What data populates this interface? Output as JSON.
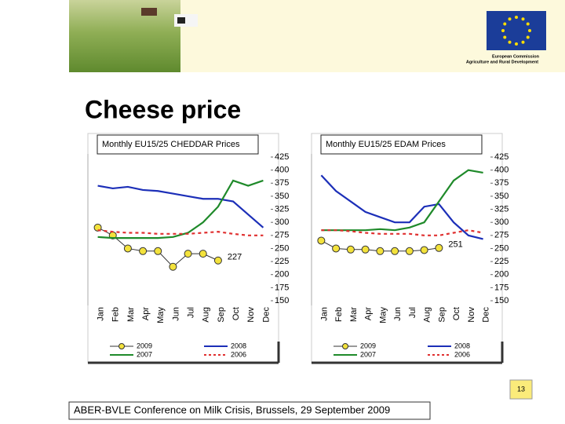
{
  "slide": {
    "title": "Cheese price",
    "footer": "ABER-BVLE Conference on Milk Crisis, Brussels, 29 September 2009",
    "page": "13",
    "logo": [
      "European Commission",
      "Agriculture and Rural Development"
    ]
  },
  "chart_data": [
    {
      "type": "line",
      "title": "Monthly EU15/25 CHEDDAR Prices",
      "categories": [
        "Jan",
        "Feb",
        "Mar",
        "Apr",
        "May",
        "Jun",
        "Jul",
        "Aug",
        "Sep",
        "Oct",
        "Nov",
        "Dec"
      ],
      "ylim": [
        150,
        425
      ],
      "yticks": [
        150,
        175,
        200,
        225,
        250,
        275,
        300,
        325,
        350,
        375,
        400,
        425
      ],
      "series": [
        {
          "name": "2009",
          "color": "#f3e23c",
          "marker": true,
          "values": [
            290,
            275,
            250,
            245,
            245,
            215,
            240,
            240,
            227,
            null,
            null,
            null
          ]
        },
        {
          "name": "2008",
          "color": "#1c2fb8",
          "values": [
            370,
            365,
            368,
            362,
            360,
            355,
            350,
            345,
            345,
            340,
            315,
            290
          ]
        },
        {
          "name": "2007",
          "color": "#1f8a2a",
          "values": [
            272,
            270,
            270,
            270,
            270,
            272,
            280,
            300,
            330,
            380,
            370,
            380
          ]
        },
        {
          "name": "2006",
          "color": "#e03030",
          "dashed": true,
          "values": [
            285,
            282,
            280,
            280,
            278,
            278,
            278,
            280,
            282,
            278,
            275,
            275
          ]
        }
      ]
    },
    {
      "type": "line",
      "title": "Monthly EU15/25 EDAM Prices",
      "categories": [
        "Jan",
        "Feb",
        "Mar",
        "Apr",
        "May",
        "Jun",
        "Jul",
        "Aug",
        "Sep",
        "Oct",
        "Nov",
        "Dec"
      ],
      "ylim": [
        150,
        425
      ],
      "yticks": [
        150,
        175,
        200,
        225,
        250,
        275,
        300,
        325,
        350,
        375,
        400,
        425
      ],
      "series": [
        {
          "name": "2009",
          "color": "#f3e23c",
          "marker": true,
          "values": [
            265,
            250,
            248,
            248,
            245,
            245,
            245,
            247,
            251,
            null,
            null,
            null
          ]
        },
        {
          "name": "2008",
          "color": "#1c2fb8",
          "values": [
            390,
            360,
            340,
            320,
            310,
            300,
            300,
            330,
            335,
            300,
            275,
            268
          ]
        },
        {
          "name": "2007",
          "color": "#1f8a2a",
          "values": [
            285,
            285,
            285,
            285,
            287,
            285,
            290,
            300,
            340,
            380,
            400,
            395
          ]
        },
        {
          "name": "2006",
          "color": "#e03030",
          "dashed": true,
          "values": [
            285,
            285,
            283,
            280,
            278,
            278,
            278,
            275,
            275,
            280,
            285,
            280
          ]
        }
      ]
    }
  ]
}
